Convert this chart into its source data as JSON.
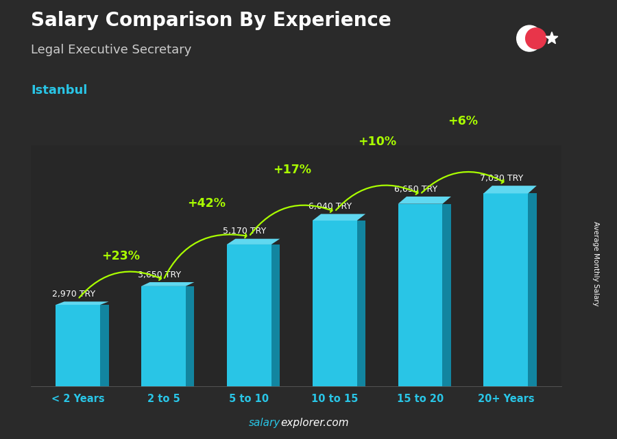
{
  "title": "Salary Comparison By Experience",
  "subtitle": "Legal Executive Secretary",
  "city": "Istanbul",
  "watermark": "salaryexplorer.com",
  "ylabel": "Average Monthly Salary",
  "categories": [
    "< 2 Years",
    "2 to 5",
    "5 to 10",
    "10 to 15",
    "15 to 20",
    "20+ Years"
  ],
  "values": [
    2970,
    3650,
    5170,
    6040,
    6650,
    7030
  ],
  "value_labels": [
    "2,970 TRY",
    "3,650 TRY",
    "5,170 TRY",
    "6,040 TRY",
    "6,650 TRY",
    "7,030 TRY"
  ],
  "pct_labels": [
    "+23%",
    "+42%",
    "+17%",
    "+10%",
    "+6%"
  ],
  "bar_color_face": "#29c5e6",
  "bar_color_side": "#1285a0",
  "bar_color_top": "#60d8f0",
  "bg_color": "#2a2a2a",
  "title_color": "#ffffff",
  "subtitle_color": "#cccccc",
  "city_color": "#29c5e6",
  "value_label_color": "#ffffff",
  "pct_color": "#aaff00",
  "xtick_color": "#29c5e6",
  "arrow_color": "#aaff00",
  "ylim": [
    0,
    8800
  ],
  "flag_red": "#e8354a",
  "flag_white": "#ffffff",
  "watermark_salary_color": "#29c5e6",
  "watermark_explorer_color": "#ffffff"
}
